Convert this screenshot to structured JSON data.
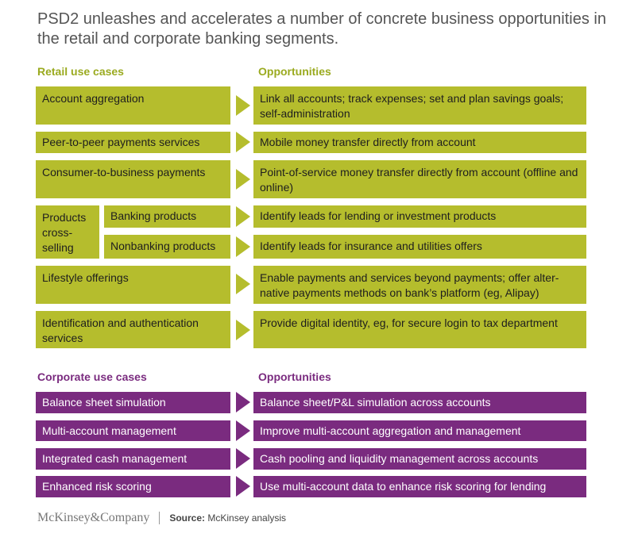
{
  "title": "PSD2 unleashes and accelerates a number of concrete business opportunities in the retail and corporate banking segments.",
  "retail": {
    "header_left": "Retail use cases",
    "header_right": "Opportunities",
    "rows": [
      {
        "use_case": "Account aggregation",
        "opportunity": "Link all accounts; track expenses; set and plan savings goals; self-administration"
      },
      {
        "use_case": "Peer-to-peer payments services",
        "opportunity": "Mobile money transfer directly from account"
      },
      {
        "use_case": "Consumer-to-business payments",
        "opportunity": "Point-of-service money transfer directly from account (offline and online)"
      },
      {
        "use_case": "Banking products",
        "opportunity": "Identify leads for lending or investment products"
      },
      {
        "use_case": "Nonbanking products",
        "opportunity": "Identify leads for insurance and utilities offers"
      },
      {
        "use_case": "Lifestyle offerings",
        "opportunity": "Enable payments and services beyond payments; offer alter-native payments methods on bank’s platform (eg, Alipay)"
      },
      {
        "use_case": "Identification and authentication services",
        "opportunity": "Provide digital identity, eg, for secure login to tax department"
      }
    ],
    "group_label": "Products cross-selling"
  },
  "corporate": {
    "header_left": "Corporate use cases",
    "header_right": "Opportunities",
    "rows": [
      {
        "use_case": "Balance sheet simulation",
        "opportunity": "Balance sheet/P&L simulation across accounts"
      },
      {
        "use_case": "Multi-account management",
        "opportunity": "Improve multi-account aggregation and management"
      },
      {
        "use_case": "Integrated cash management",
        "opportunity": "Cash pooling and liquidity management across accounts"
      },
      {
        "use_case": "Enhanced risk scoring",
        "opportunity": "Use multi-account data to enhance risk scoring for lending"
      }
    ]
  },
  "footer": {
    "logo": "McKinsey&Company",
    "source_label": "Source:",
    "source_text": "McKinsey analysis"
  },
  "colors": {
    "retail": "#b5bd2d",
    "corporate": "#7a2b7f",
    "retail_label": "#9aaa1f",
    "corporate_label": "#7a2b7f"
  }
}
